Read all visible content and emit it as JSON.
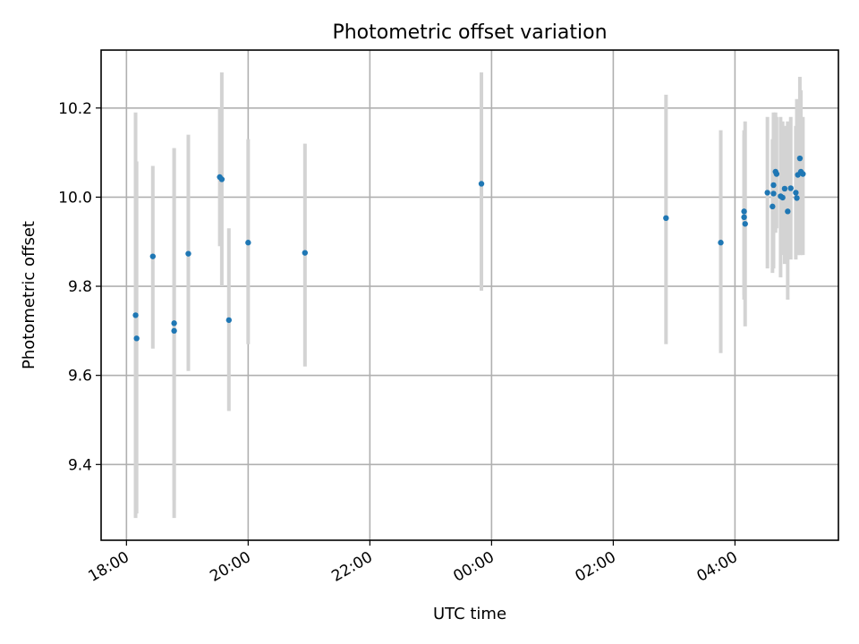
{
  "chart_data": {
    "type": "scatter",
    "title": "Photometric offset variation",
    "xlabel": "UTC time",
    "ylabel": "Photometric offset",
    "xlim": [
      "17:35",
      "05:42"
    ],
    "ylim": [
      9.23,
      10.33
    ],
    "x_ticks": [
      "18:00",
      "20:00",
      "22:00",
      "00:00",
      "02:00",
      "04:00"
    ],
    "y_ticks": [
      "9.4",
      "9.6",
      "9.8",
      "10.0",
      "10.2"
    ],
    "grid": true,
    "marker_color": "#1f77b4",
    "errorbar_color": "#d3d3d3",
    "points": [
      {
        "t": "18:09",
        "y": 9.735,
        "ylo": 9.28,
        "yhi": 10.19
      },
      {
        "t": "18:10",
        "y": 9.683,
        "ylo": 9.29,
        "yhi": 10.08
      },
      {
        "t": "18:26",
        "y": 9.867,
        "ylo": 9.66,
        "yhi": 10.07
      },
      {
        "t": "18:47",
        "y": 9.717,
        "ylo": 9.32,
        "yhi": 10.11
      },
      {
        "t": "18:47",
        "y": 9.7,
        "ylo": 9.28,
        "yhi": 10.11
      },
      {
        "t": "19:01",
        "y": 9.873,
        "ylo": 9.61,
        "yhi": 10.14
      },
      {
        "t": "19:32",
        "y": 10.045,
        "ylo": 9.89,
        "yhi": 10.2
      },
      {
        "t": "19:34",
        "y": 10.04,
        "ylo": 9.8,
        "yhi": 10.28
      },
      {
        "t": "19:41",
        "y": 9.724,
        "ylo": 9.52,
        "yhi": 9.93
      },
      {
        "t": "20:00",
        "y": 9.898,
        "ylo": 9.67,
        "yhi": 10.13
      },
      {
        "t": "20:56",
        "y": 9.875,
        "ylo": 9.62,
        "yhi": 10.12
      },
      {
        "t": "23:50",
        "y": 10.03,
        "ylo": 9.79,
        "yhi": 10.28
      },
      {
        "t": "02:52",
        "y": 9.953,
        "ylo": 9.67,
        "yhi": 10.23
      },
      {
        "t": "03:46",
        "y": 9.898,
        "ylo": 9.65,
        "yhi": 10.15
      },
      {
        "t": "04:09",
        "y": 9.968,
        "ylo": 9.77,
        "yhi": 10.14
      },
      {
        "t": "04:09",
        "y": 9.955,
        "ylo": 9.78,
        "yhi": 10.15
      },
      {
        "t": "04:10",
        "y": 9.94,
        "ylo": 9.71,
        "yhi": 10.17
      },
      {
        "t": "04:32",
        "y": 10.01,
        "ylo": 9.84,
        "yhi": 10.18
      },
      {
        "t": "04:37",
        "y": 9.979,
        "ylo": 9.83,
        "yhi": 10.13
      },
      {
        "t": "04:38",
        "y": 10.008,
        "ylo": 9.84,
        "yhi": 10.18
      },
      {
        "t": "04:38",
        "y": 10.027,
        "ylo": 9.85,
        "yhi": 10.19
      },
      {
        "t": "04:40",
        "y": 10.057,
        "ylo": 9.92,
        "yhi": 10.19
      },
      {
        "t": "04:41",
        "y": 10.052,
        "ylo": 9.93,
        "yhi": 10.18
      },
      {
        "t": "04:45",
        "y": 10.002,
        "ylo": 9.82,
        "yhi": 10.18
      },
      {
        "t": "04:47",
        "y": 9.999,
        "ylo": 9.87,
        "yhi": 10.17
      },
      {
        "t": "04:49",
        "y": 10.019,
        "ylo": 9.85,
        "yhi": 10.16
      },
      {
        "t": "04:52",
        "y": 9.968,
        "ylo": 9.77,
        "yhi": 10.17
      },
      {
        "t": "04:55",
        "y": 10.02,
        "ylo": 9.86,
        "yhi": 10.18
      },
      {
        "t": "05:00",
        "y": 10.01,
        "ylo": 9.86,
        "yhi": 10.16
      },
      {
        "t": "05:01",
        "y": 9.998,
        "ylo": 9.87,
        "yhi": 10.22
      },
      {
        "t": "05:02",
        "y": 10.05,
        "ylo": 9.87,
        "yhi": 10.18
      },
      {
        "t": "05:04",
        "y": 10.087,
        "ylo": 9.87,
        "yhi": 10.27
      },
      {
        "t": "05:05",
        "y": 10.057,
        "ylo": 9.87,
        "yhi": 10.24
      },
      {
        "t": "05:07",
        "y": 10.052,
        "ylo": 9.87,
        "yhi": 10.18
      }
    ]
  }
}
